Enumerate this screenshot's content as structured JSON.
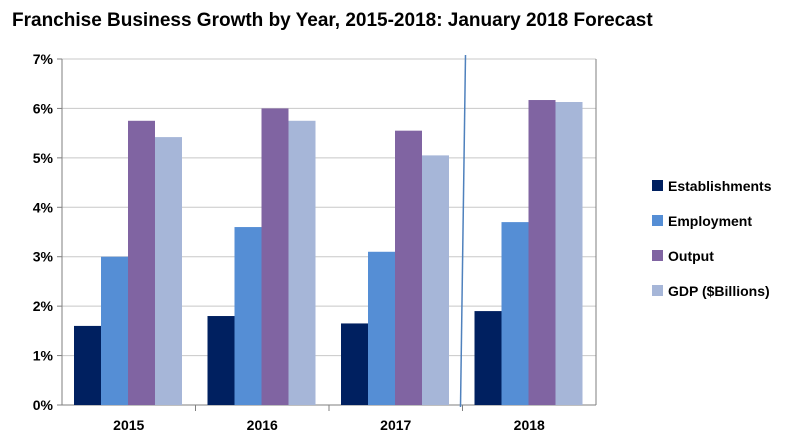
{
  "chart_data": {
    "type": "bar",
    "title": "Franchise Business Growth by Year, 2015-2018: January 2018 Forecast",
    "categories": [
      "2015",
      "2016",
      "2017",
      "2018"
    ],
    "series": [
      {
        "name": "Establishments",
        "values": [
          1.6,
          1.8,
          1.65,
          1.9
        ],
        "color": "#002060"
      },
      {
        "name": "Employment",
        "values": [
          3.0,
          3.6,
          3.1,
          3.7
        ],
        "color": "#558ED5"
      },
      {
        "name": "Output",
        "values": [
          5.75,
          6.0,
          5.55,
          6.17
        ],
        "color": "#8064A2"
      },
      {
        "name": "GDP ($Billions)",
        "values": [
          5.42,
          5.75,
          5.05,
          6.13
        ],
        "color": "#A6B6D8"
      }
    ],
    "ylim": [
      0,
      7
    ],
    "yticks": [
      "0%",
      "1%",
      "2%",
      "3%",
      "4%",
      "5%",
      "6%",
      "7%"
    ],
    "grid": true,
    "legend_position": "right",
    "forecast_divider_after": "2017"
  }
}
